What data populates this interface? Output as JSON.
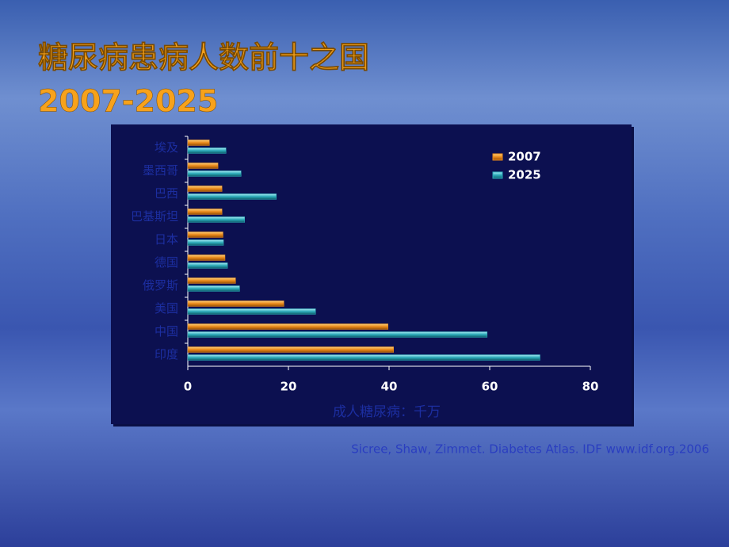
{
  "chart_data": {
    "type": "bar",
    "orientation": "horizontal",
    "title": "糖尿病患病人数前十之国",
    "subtitle": "2007-2025",
    "categories": [
      "埃及",
      "墨西哥",
      "巴西",
      "巴基斯坦",
      "日本",
      "德国",
      "俄罗斯",
      "美国",
      "中国",
      "印度"
    ],
    "series": [
      {
        "name": "2007",
        "color": "#e8891a",
        "values": [
          4.3,
          6.0,
          6.8,
          6.8,
          7.0,
          7.4,
          9.5,
          19.1,
          39.8,
          40.9
        ]
      },
      {
        "name": "2025",
        "color": "#2aa9b8",
        "values": [
          7.6,
          10.6,
          17.6,
          11.3,
          7.1,
          7.9,
          10.3,
          25.4,
          59.5,
          70.0
        ]
      }
    ],
    "xlim": [
      0,
      80
    ],
    "xticks": [
      0,
      20,
      40,
      60,
      80
    ],
    "x_label": "成人糖尿病：千万",
    "legend": "top-right",
    "source": "Sicree, Shaw, Zimmet. Diabetes Atlas. IDF www.idf.org.2006"
  }
}
